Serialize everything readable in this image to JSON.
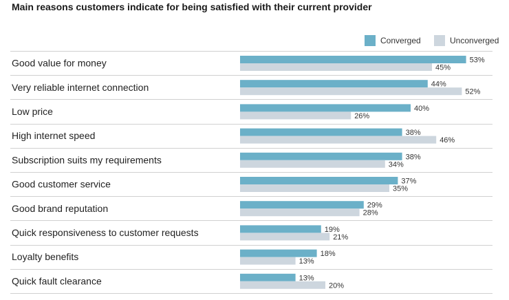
{
  "chart_data": {
    "type": "bar",
    "orientation": "horizontal",
    "title": "Main reasons customers indicate for being satisfied with their current provider",
    "categories": [
      "Good value for money",
      "Very reliable internet connection",
      "Low price",
      "High internet speed",
      "Subscription suits my requirements",
      "Good customer service",
      "Good brand reputation",
      "Quick responsiveness to customer requests",
      "Loyalty benefits",
      "Quick fault clearance"
    ],
    "series": [
      {
        "name": "Converged",
        "color": "#6bb0c8",
        "values": [
          53,
          44,
          40,
          38,
          38,
          37,
          29,
          19,
          18,
          13
        ]
      },
      {
        "name": "Unconverged",
        "color": "#cdd6de",
        "values": [
          45,
          52,
          26,
          46,
          34,
          35,
          28,
          21,
          13,
          20
        ]
      }
    ],
    "value_suffix": "%",
    "xlim": [
      0,
      100
    ],
    "legend_position": "top-right",
    "grid": false
  }
}
